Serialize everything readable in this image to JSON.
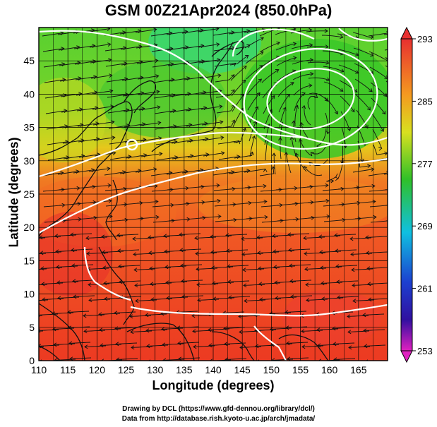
{
  "title": "GSM 00Z21Apr2024 (850.0hPa)",
  "xlabel": "Longitude (degrees)",
  "ylabel": "Latitude  (degrees)",
  "credits": [
    "Drawing by DCL (https://www.gfd-dennou.org/library/dcl/)",
    "Data from http://database.rish.kyoto-u.ac.jp/arch/jmadata/"
  ],
  "map": {
    "x_ticks": [
      110,
      115,
      120,
      125,
      130,
      135,
      140,
      145,
      150,
      155,
      160,
      165
    ],
    "y_ticks": [
      0,
      5,
      10,
      15,
      20,
      25,
      30,
      35,
      40,
      45
    ],
    "xlim": [
      110,
      170
    ],
    "ylim": [
      0,
      50
    ],
    "grid": true
  },
  "colorbar": {
    "labels": [
      "293",
      "285",
      "277",
      "269",
      "261",
      "253"
    ],
    "range": [
      253,
      293
    ],
    "colors": {
      "top": "#e8403a",
      "orange": "#f39a20",
      "yellow": "#e8e020",
      "green": "#34c626",
      "cyan": "#10c8d0",
      "blue": "#1c50d8",
      "navy": "#1a1ab0",
      "magenta": "#d020c0"
    }
  }
}
